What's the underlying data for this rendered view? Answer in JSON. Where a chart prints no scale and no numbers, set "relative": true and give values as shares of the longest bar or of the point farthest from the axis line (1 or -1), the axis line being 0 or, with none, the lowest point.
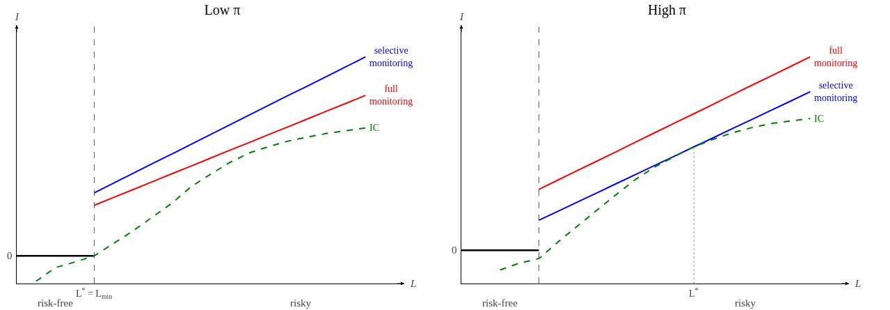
{
  "chart_data": [
    {
      "type": "line",
      "title": "Low π",
      "xlabel": "L",
      "ylabel": "I",
      "relative": true,
      "legend": false,
      "grid": false,
      "categories": [
        null,
        null,
        null,
        null,
        null,
        null,
        null,
        null,
        null,
        null,
        null,
        null,
        null,
        null,
        null,
        null,
        null,
        null,
        null
      ],
      "annotations": [
        "0",
        "L$^{*}$ = L$_{min}$",
        "risk-free",
        "risky"
      ],
      "series": [
        {
          "color": "#000000",
          "values": [
            0.122,
            0.122,
            0.122,
            0.122,
            0.122,
            null,
            null,
            null,
            null,
            null,
            null,
            null,
            null,
            null,
            null,
            null,
            null,
            null,
            null
          ]
        },
        {
          "name": "selective monitoring",
          "color": "#0000ff",
          "values": [
            null,
            null,
            null,
            null,
            0.4,
            0.443,
            0.486,
            0.529,
            0.571,
            0.614,
            0.657,
            0.7,
            0.743,
            0.786,
            0.829,
            0.871,
            0.914,
            0.957,
            1.0
          ]
        },
        {
          "name": "full monitoring",
          "color": "#ff0000",
          "values": [
            null,
            null,
            null,
            null,
            0.345,
            0.38,
            0.414,
            0.449,
            0.484,
            0.518,
            0.553,
            0.588,
            0.622,
            0.657,
            0.691,
            0.726,
            0.761,
            0.795,
            0.83
          ]
        },
        {
          "name": "IC",
          "color": "#008000",
          "line_style": "dashed",
          "values": [
            null,
            0.01,
            0.07,
            0.095,
            0.122,
            0.177,
            0.232,
            0.293,
            0.354,
            0.427,
            0.482,
            0.534,
            0.576,
            0.604,
            0.628,
            0.646,
            0.662,
            0.674,
            0.686
          ]
        }
      ]
    },
    {
      "type": "line",
      "title": "High π",
      "xlabel": "L",
      "ylabel": "I",
      "relative": true,
      "legend": false,
      "grid": false,
      "categories": [
        null,
        null,
        null,
        null,
        null,
        null,
        null,
        null,
        null,
        null,
        null,
        null,
        null,
        null,
        null,
        null,
        null,
        null,
        null
      ],
      "annotations": [
        "0",
        "L$^{*}$",
        "risk-free",
        "risky"
      ],
      "series": [
        {
          "color": "#000000",
          "values": [
            0.147,
            0.147,
            0.147,
            0.147,
            0.147,
            null,
            null,
            null,
            null,
            null,
            null,
            null,
            null,
            null,
            null,
            null,
            null,
            null,
            null
          ]
        },
        {
          "name": "full monitoring",
          "color": "#ff0000",
          "values": [
            null,
            null,
            null,
            null,
            0.415,
            0.457,
            0.499,
            0.54,
            0.582,
            0.624,
            0.666,
            0.708,
            0.749,
            0.791,
            0.833,
            0.875,
            0.916,
            0.958,
            1.0
          ]
        },
        {
          "name": "selective monitoring",
          "color": "#0000ff",
          "values": [
            null,
            null,
            null,
            null,
            0.279,
            0.319,
            0.36,
            0.4,
            0.441,
            0.481,
            0.522,
            0.562,
            0.603,
            0.643,
            0.684,
            0.724,
            0.765,
            0.805,
            0.846
          ]
        },
        {
          "name": "IC",
          "color": "#008000",
          "line_style": "dashed",
          "values": [
            null,
            null,
            0.06,
            0.09,
            0.11,
            0.184,
            0.254,
            0.324,
            0.393,
            0.46,
            0.515,
            0.56,
            0.603,
            0.636,
            0.665,
            0.688,
            0.706,
            0.717,
            0.728
          ]
        }
      ]
    }
  ]
}
